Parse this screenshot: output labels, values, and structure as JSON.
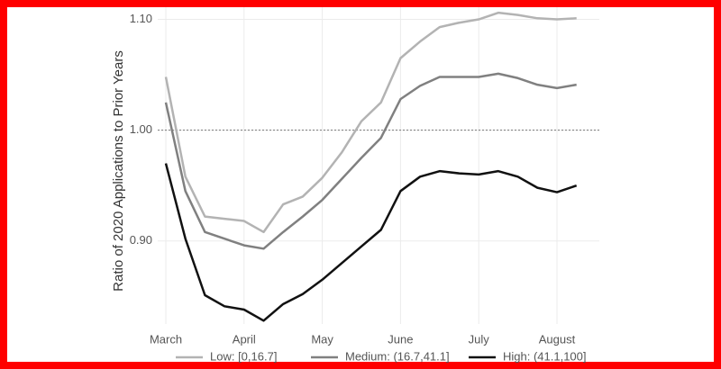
{
  "chart_data": {
    "type": "line",
    "y_label": "Ratio of 2020 Applications to Prior Years",
    "categories": [
      "March",
      null,
      null,
      null,
      "April",
      null,
      null,
      null,
      "May",
      null,
      null,
      null,
      "June",
      null,
      null,
      null,
      "July",
      null,
      null,
      null,
      "August",
      null
    ],
    "series": [
      {
        "name": "Low: [0,16.7]",
        "color": "#b3b3b3",
        "values": [
          1.048,
          0.958,
          0.922,
          0.92,
          0.918,
          0.908,
          0.933,
          0.94,
          0.957,
          0.98,
          1.008,
          1.025,
          1.065,
          1.08,
          1.093,
          1.097,
          1.1,
          1.106,
          1.104,
          1.101,
          1.1,
          1.101
        ]
      },
      {
        "name": "Medium: (16.7,41.1]",
        "color": "#808080",
        "values": [
          1.025,
          0.945,
          0.908,
          0.902,
          0.896,
          0.893,
          0.908,
          0.922,
          0.937,
          0.956,
          0.975,
          0.993,
          1.028,
          1.04,
          1.048,
          1.048,
          1.048,
          1.051,
          1.047,
          1.041,
          1.038,
          1.041
        ]
      },
      {
        "name": "High: (41.1,100]",
        "color": "#111111",
        "values": [
          0.97,
          0.902,
          0.851,
          0.841,
          0.838,
          0.828,
          0.843,
          0.852,
          0.865,
          0.88,
          0.895,
          0.91,
          0.945,
          0.958,
          0.963,
          0.961,
          0.96,
          0.963,
          0.958,
          0.948,
          0.944,
          0.95
        ]
      }
    ],
    "ylim": [
      0.825,
      1.111
    ],
    "yticks": [
      {
        "value": 0.9,
        "label": "0.90"
      },
      {
        "value": 1.0,
        "label": "1.00"
      },
      {
        "value": 1.1,
        "label": "1.10"
      }
    ],
    "hline": 1.0,
    "grid": true,
    "legend": "bottom"
  }
}
